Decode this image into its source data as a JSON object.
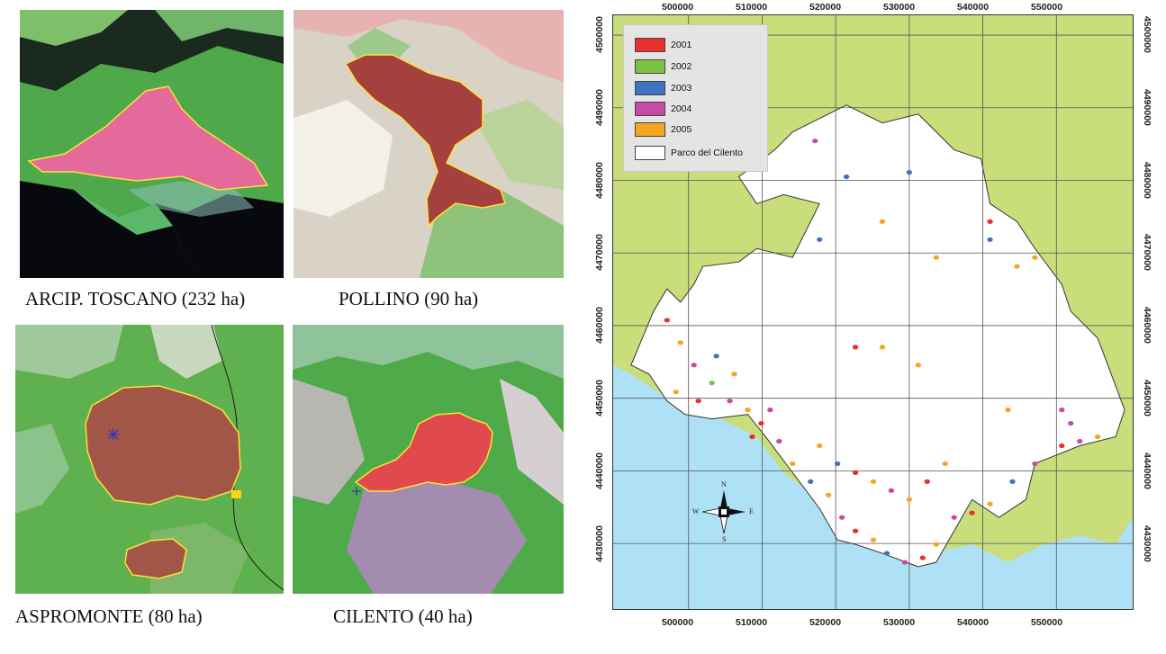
{
  "panels": [
    {
      "id": "toscano",
      "caption": "ARCIP. TOSCANO (232 ha)"
    },
    {
      "id": "pollino",
      "caption": "POLLINO (90 ha)"
    },
    {
      "id": "aspromonte",
      "caption": "ASPROMONTE (80 ha)"
    },
    {
      "id": "cilento",
      "caption": "CILENTO (40 ha)"
    }
  ],
  "map": {
    "x_ticks": [
      "500000",
      "510000",
      "520000",
      "530000",
      "540000",
      "550000"
    ],
    "y_ticks": [
      "4500000",
      "4490000",
      "4480000",
      "4470000",
      "4460000",
      "4450000",
      "4440000",
      "4430000"
    ],
    "legend": [
      {
        "label": "2001",
        "color": "#e8302e"
      },
      {
        "label": "2002",
        "color": "#7cc242"
      },
      {
        "label": "2003",
        "color": "#3f73c2"
      },
      {
        "label": "2004",
        "color": "#c64aa6"
      },
      {
        "label": "2005",
        "color": "#f5a623"
      },
      {
        "label": "Parco del Cilento",
        "color": "#ffffff"
      }
    ],
    "compass": {
      "n": "N",
      "s": "S",
      "e": "E",
      "w": "W"
    },
    "colors": {
      "sea": "#aee1f5",
      "land": "#c9dd7a",
      "park": "#ffffff",
      "grid": "#555555"
    }
  }
}
